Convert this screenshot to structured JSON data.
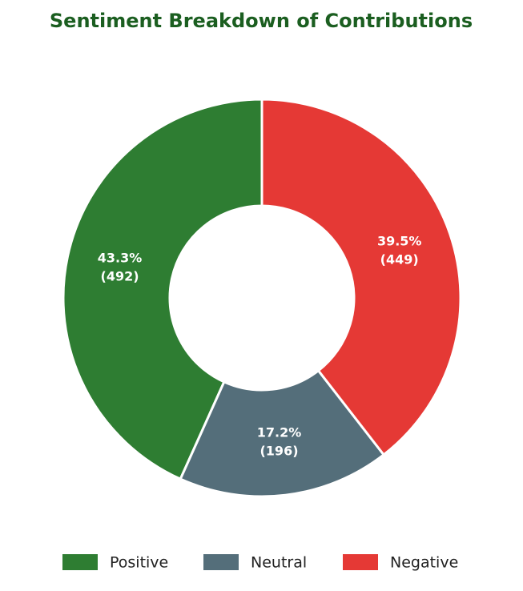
{
  "chart_data": {
    "type": "donut",
    "title": "Sentiment Breakdown of Contributions",
    "categories": [
      "Positive",
      "Neutral",
      "Negative"
    ],
    "values": [
      492,
      196,
      449
    ],
    "percent_labels": [
      "43.3%",
      "17.2%",
      "39.5%"
    ],
    "value_labels": [
      "(492)",
      "(196)",
      "(449)"
    ],
    "colors": [
      "#2e7d32",
      "#546e7a",
      "#e53935"
    ],
    "direction": "counterclockwise",
    "legend": "bottom"
  }
}
